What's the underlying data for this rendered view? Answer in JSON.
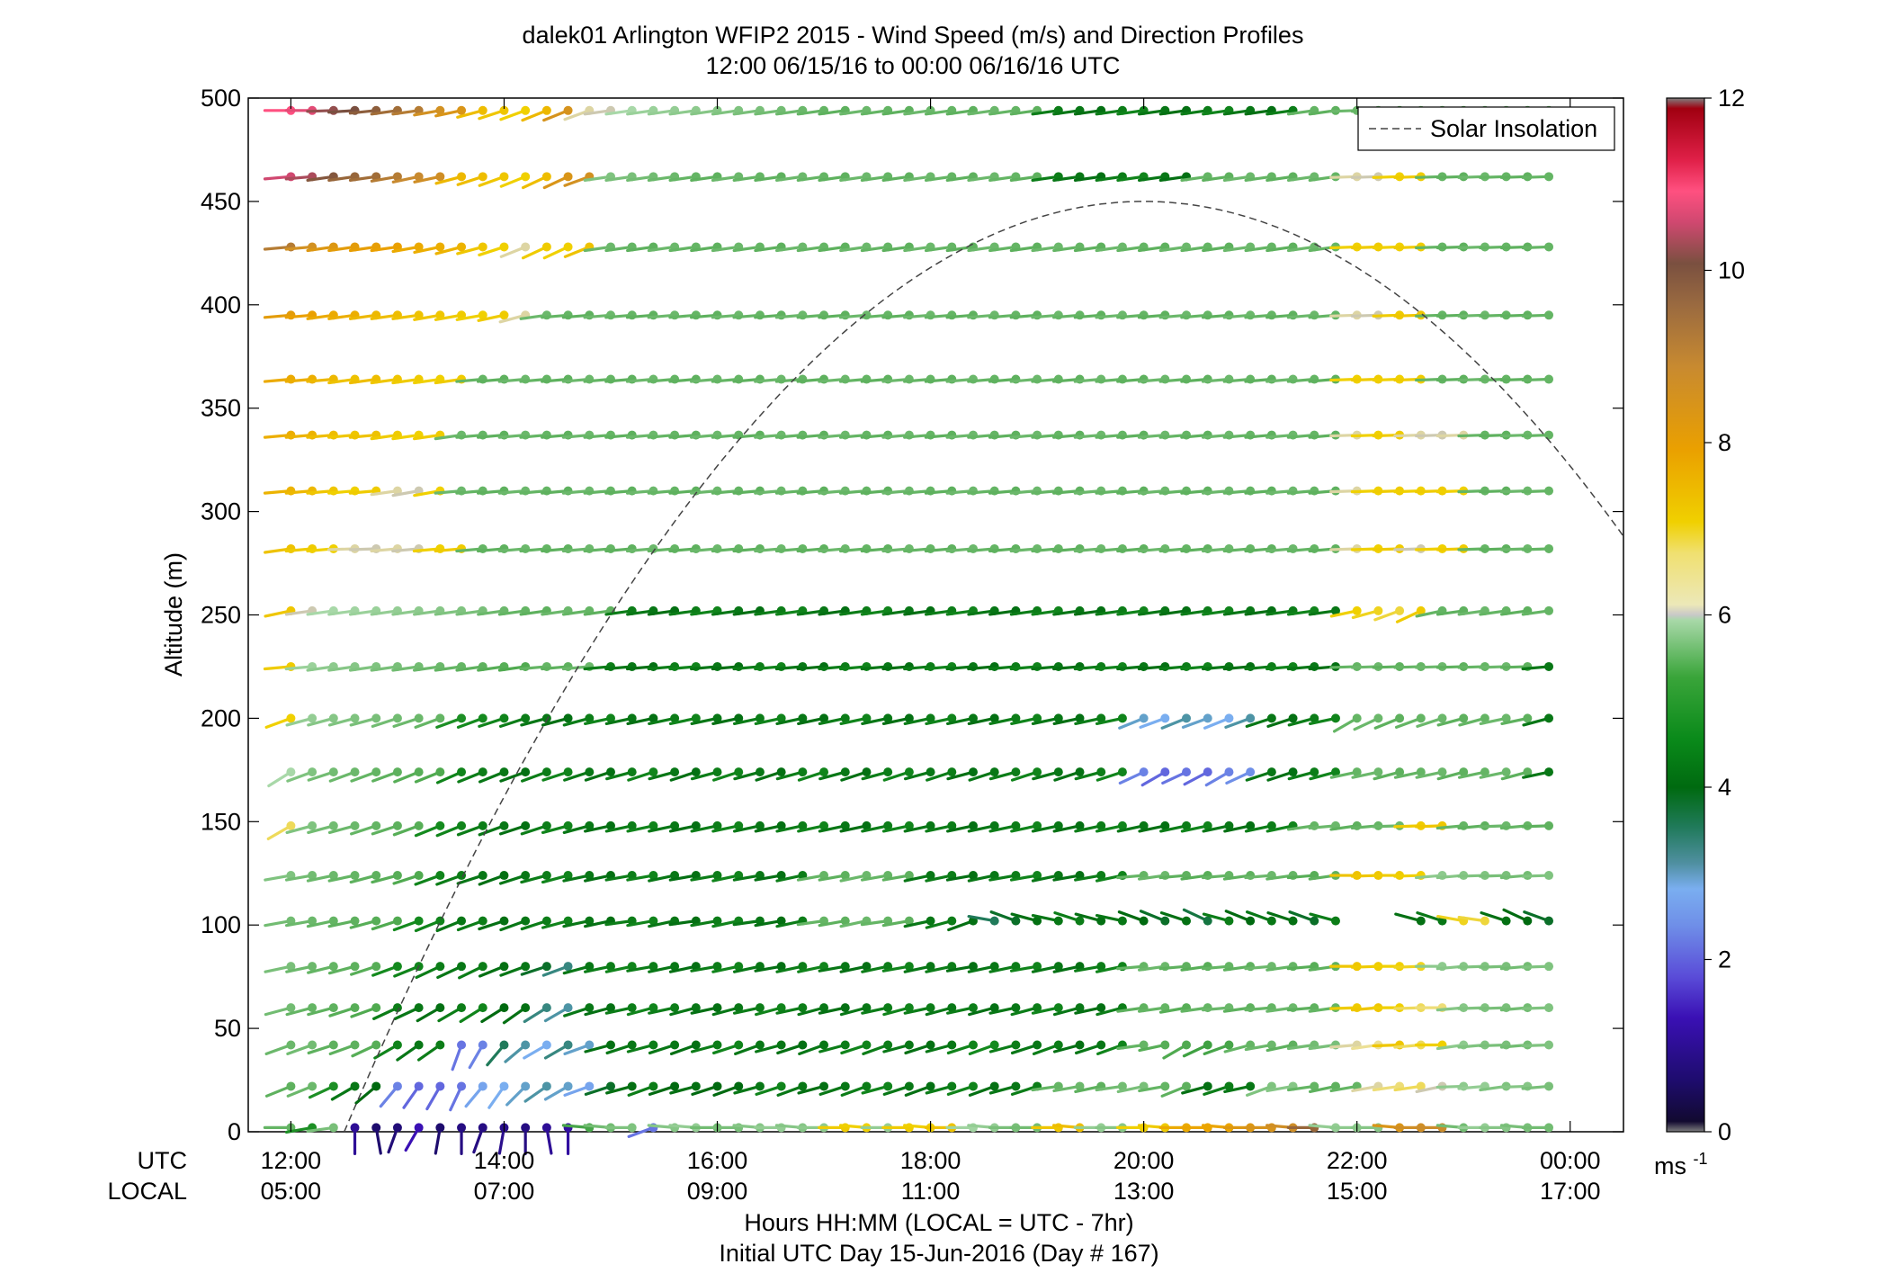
{
  "chart_data": {
    "type": "wind-barb-profile",
    "title_line1": "dalek01 Arlington WFIP2 2015 - Wind Speed (m/s) and Direction Profiles",
    "title_line2": "12:00 06/15/16 to 00:00 06/16/16  UTC",
    "ylabel": "Altitude (m)",
    "ylim": [
      0,
      500
    ],
    "yticks": [
      "0",
      "50",
      "100",
      "150",
      "200",
      "250",
      "300",
      "350",
      "400",
      "450",
      "500"
    ],
    "xlim_hours_utc": [
      11.6,
      24.5
    ],
    "xticks_utc": [
      "12:00",
      "14:00",
      "16:00",
      "18:00",
      "20:00",
      "22:00",
      "00:00"
    ],
    "xticks_local": [
      "05:00",
      "07:00",
      "09:00",
      "11:00",
      "13:00",
      "15:00",
      "17:00"
    ],
    "row_label_utc": "UTC",
    "row_label_local": "LOCAL",
    "xlabel_line1": "Hours HH:MM  (LOCAL = UTC - 7hr)",
    "xlabel_line2": "Initial UTC Day 15-Jun-2016 (Day # 167)",
    "legend": {
      "entries": [
        "Solar Insolation"
      ],
      "placement": "top-right",
      "style": "dashed gray"
    },
    "colorbar": {
      "min": 0,
      "max": 12,
      "ticks": [
        "0",
        "2",
        "4",
        "6",
        "8",
        "10",
        "12"
      ],
      "unit": "ms",
      "unit_exp": "-1"
    },
    "solar_insolation": {
      "start_hour": 12.5,
      "peak_hour": 20.0,
      "peak_altitude": 450,
      "end_hour": 24.5,
      "end_altitude": 250
    },
    "altitudes_m": [
      2,
      22,
      42,
      60,
      80,
      102,
      124,
      148,
      174,
      200,
      225,
      252,
      282,
      310,
      337,
      364,
      395,
      428,
      462,
      494
    ],
    "time_hours_utc": [
      12.0,
      12.2,
      12.4,
      12.6,
      12.8,
      13.0,
      13.2,
      13.4,
      13.6,
      13.8,
      14.0,
      14.2,
      14.4,
      14.6,
      14.8,
      15.0,
      15.2,
      15.4,
      15.6,
      15.8,
      16.0,
      16.2,
      16.4,
      16.6,
      16.8,
      17.0,
      17.2,
      17.4,
      17.6,
      17.8,
      18.0,
      18.2,
      18.4,
      18.6,
      18.8,
      19.0,
      19.2,
      19.4,
      19.6,
      19.8,
      20.0,
      20.2,
      20.4,
      20.6,
      20.8,
      21.0,
      21.2,
      21.4,
      21.6,
      21.8,
      22.0,
      22.2,
      22.4,
      22.6,
      22.8,
      23.0,
      23.2,
      23.4,
      23.6,
      23.8
    ],
    "wind_speed_ms_rows": [
      "4.8 3.9 5.1 1.0 0.6 0.7 1.3 0.6 0.8 0.8 0.9 0.8 1.0 1.1 4.4 5.0 5.2 2.1 5.3 5.5 5.0 5.1 5.3 5.5 5.3 5.4 6.9 6.8 5.5 6.9 6.8 7.1 5.7 5.5 5.1 5.0 7.0 7.2 5.5 5.3 6.8 6.9 7.6 7.7 7.7 8.2 8.4 8.6 9.3 5.5 5.4 5.3 8.3 8.6 8.7 5.0 5.5 5.3 5.1 5.0",
      "4.7 4.9 3.9 3.5 3.3 2.2 2.0 2.0 2.1 2.5 2.6 2.7 2.8 2.7 2.5 3.2 3.4 3.6 3.3 3.4 3.3 3.3 3.5 3.7 3.5 3.4 3.5 3.6 3.7 3.5 3.4 3.6 3.7 3.4 3.5 3.6 4.8 4.9 4.7 5.0 5.1 4.8 4.7 3.4 3.6 3.5 5.2 5.3 4.8 4.7 4.8 6.2 6.4 6.5 6.1 5.4 5.5 5.2 5.3 5.1",
      "4.9 5.0 4.7 4.7 4.6 3.7 3.5 3.6 2.1 2.2 3.0 2.8 2.6 2.9 2.7 3.4 3.5 3.6 3.5 3.4 3.6 3.7 3.5 3.5 3.4 3.5 3.6 3.7 3.6 3.5 3.4 3.5 3.7 3.8 3.6 3.5 3.6 3.4 3.5 3.7 4.8 4.6 4.5 4.3 4.4 4.8 4.9 4.7 5.0 5.1 6.2 6.3 7.0 6.5 6.8 5.4 5.2 5.1 5.0 5.2",
      "5.0 4.8 4.7 4.6 4.5 3.6 3.5 3.4 3.6 3.7 3.3 3.4 2.9 2.8 3.5 3.4 3.6 3.7 3.6 3.5 3.4 3.5 3.6 3.7 3.6 3.5 3.4 3.5 3.6 3.7 3.6 3.5 3.6 3.4 3.5 3.6 3.7 3.5 3.4 3.6 4.7 4.8 4.6 4.8 4.9 4.7 4.8 4.9 4.7 4.8 6.9 7.0 6.8 6.5 6.4 5.3 5.2 5.1 5.0 5.2",
      "5.1 4.9 4.8 4.7 4.6 3.8 3.7 3.6 3.5 3.6 3.4 3.5 3.2 2.9 3.5 3.6 3.7 3.6 3.5 3.4 3.6 3.7 3.5 3.4 3.6 3.7 3.5 3.4 3.6 3.7 3.5 3.6 3.4 3.5 3.6 3.7 3.5 3.4 3.6 3.7 4.8 4.9 4.7 4.6 4.8 4.7 4.9 4.8 4.6 4.7 7.0 6.9 6.8 6.7 5.4 5.3 5.2 5.1 5.0 5.2",
      "5.0 4.9 4.8 4.7 4.6 4.5 3.8 3.7 3.5 3.6 3.4 3.5 3.6 3.7 3.5 3.4 3.6 3.7 3.5 3.4 3.6 3.7 3.5 3.4 3.6 4.8 4.7 4.9 4.8 4.7 3.5 3.6 3.4 3.0 3.2 3.4 3.5 3.6 3.4 3.5 3.3 3.2 3.4 3.1 3.6 3.3 3.5 3.4 3.2 3.6 0 0 0 3.4 3.5 6.7 6.6 3.4 3.3 3.2",
      "5.2 5.0 4.9 4.8 4.7 4.6 4.5 3.7 3.6 3.5 3.4 3.5 3.6 3.7 3.5 3.4 3.6 3.7 3.5 3.4 3.6 3.7 3.5 3.4 3.6 4.8 4.7 4.9 4.8 4.7 3.5 3.6 3.4 3.5 3.6 3.7 3.5 3.4 3.6 3.7 4.8 4.9 4.7 4.6 4.8 4.7 4.9 4.8 4.6 4.7 7.1 7.0 6.9 6.8 5.4 5.3 5.2 5.1 5.0 5.2",
      "6.5 5.2 5.0 4.9 4.8 4.7 4.6 3.8 3.7 3.6 3.5 3.4 3.6 3.7 3.5 3.4 3.6 3.7 3.5 3.4 3.6 3.7 3.5 3.4 3.6 3.7 3.5 3.4 3.6 3.7 3.5 3.6 3.4 3.5 3.6 3.7 3.5 3.4 3.6 3.7 3.5 3.4 3.6 3.7 3.5 3.4 3.6 3.7 4.8 4.9 4.7 4.8 4.9 6.9 7.0 4.8 4.7 4.9 4.8 4.7",
      "5.8 5.2 5.0 4.9 4.8 4.7 4.6 4.5 3.7 3.6 3.5 3.4 3.6 3.7 3.5 3.4 3.6 3.7 3.5 3.4 3.6 3.7 3.5 3.4 3.6 3.7 3.5 3.4 3.6 3.7 3.5 3.6 3.4 3.5 3.6 3.7 3.5 3.4 3.6 3.7 2.2 2.0 2.1 2.0 2.2 2.3 3.5 3.4 3.6 3.7 4.8 4.9 4.7 4.8 4.9 4.7 4.8 4.9 4.7 3.5",
      "6.8 5.5 5.3 5.2 5.1 5.0 4.9 4.8 3.9 3.8 3.7 3.6 3.5 3.4 3.6 3.7 3.5 3.4 3.6 3.7 3.5 3.4 3.6 3.7 3.5 3.4 3.6 3.7 3.5 3.4 3.6 3.7 3.5 3.4 3.6 3.7 3.5 3.4 3.6 3.7 2.7 2.6 2.8 2.7 2.6 2.8 3.5 3.4 3.6 3.7 4.8 4.9 4.7 4.8 4.9 4.7 4.8 4.9 4.7 3.5",
      "6.9 5.6 5.4 5.3 5.2 5.1 5.0 4.9 4.8 4.7 4.6 4.5 4.8 4.7 4.9 3.6 3.5 3.4 3.6 3.7 3.5 3.4 3.6 3.7 3.5 3.4 3.6 3.7 3.5 3.4 3.6 3.7 3.5 3.4 3.6 3.7 3.5 3.4 3.6 3.7 3.5 3.4 3.6 3.7 3.5 3.4 3.6 3.7 3.5 3.4 4.8 4.9 4.7 4.8 4.9 4.7 4.8 4.9 4.7 3.5",
      "7.0 6.1 5.8 5.7 5.6 5.5 5.4 5.3 5.2 5.1 4.9 4.8 4.7 4.9 4.8 4.7 3.6 3.5 3.4 3.6 3.7 3.5 3.4 3.6 3.7 3.5 3.4 3.6 3.7 3.5 3.4 3.6 3.7 3.5 3.4 3.6 3.7 3.5 3.4 3.6 3.7 3.5 3.4 3.6 3.7 3.5 3.4 3.6 3.7 3.5 6.8 6.7 6.6 6.9 4.8 4.7 4.9 4.8 4.7 4.8",
      "7.1 6.9 6.8 6.2 6.1 6.2 6.1 6.8 6.9 4.8 4.7 4.9 4.8 4.7 4.9 4.8 4.7 4.9 4.8 4.7 4.9 4.8 4.7 4.9 4.8 4.7 4.9 4.8 4.7 4.9 4.8 4.7 4.9 4.8 4.7 4.9 4.8 4.7 4.9 4.8 4.7 4.9 4.8 4.7 4.9 4.8 4.7 4.9 4.8 4.7 6.2 6.8 6.9 6.1 6.8 6.9 4.8 4.7 4.9 4.8",
      "7.4 7.3 7.0 6.8 6.9 6.2 6.1 6.8 4.9 4.8 4.7 4.9 4.8 4.7 4.9 4.8 4.7 4.9 4.8 4.7 4.9 4.8 4.7 4.9 4.8 4.7 4.9 4.8 4.7 4.9 4.8 4.7 4.9 4.8 4.7 4.9 4.8 4.7 4.9 4.8 4.7 4.9 4.8 4.7 4.9 4.8 4.7 4.9 4.8 4.7 6.2 6.8 6.9 6.8 6.9 6.8 4.8 4.7 4.9 4.8",
      "7.5 7.4 7.2 7.0 7.1 6.9 6.8 6.9 4.9 4.8 4.7 4.9 4.8 4.7 4.9 4.8 4.7 4.9 4.8 4.7 4.9 4.8 4.7 4.9 4.8 4.7 4.9 4.8 4.7 4.9 4.8 4.7 4.9 4.8 4.7 4.9 4.8 4.7 4.9 4.8 4.7 4.9 4.8 4.7 4.9 4.8 4.7 4.9 4.8 4.7 6.2 6.8 6.9 6.2 6.1 6.2 4.8 4.7 4.9 4.8",
      "7.6 7.5 7.3 7.1 7.2 7.0 6.9 6.8 6.9 4.8 4.7 4.9 4.8 4.7 4.9 4.8 4.7 4.9 4.8 4.7 4.9 4.8 4.7 4.9 4.8 4.7 4.9 4.8 4.7 4.9 4.8 4.7 4.9 4.8 4.7 4.9 4.8 4.7 4.9 4.8 4.7 4.9 4.8 4.7 4.9 4.8 4.7 4.9 4.8 4.7 6.8 6.9 6.8 6.9 4.8 4.7 4.9 4.8 4.7 4.8",
      "8.0 7.8 7.6 7.5 7.3 7.2 7.1 7.0 6.9 6.8 6.9 6.2 4.9 4.8 4.7 4.9 4.8 4.7 4.9 4.8 4.7 4.9 4.8 4.7 4.9 4.8 4.7 4.9 4.8 4.7 4.9 4.8 4.7 4.9 4.8 4.7 4.9 4.8 4.7 4.9 4.8 4.7 4.9 4.8 4.7 4.9 4.8 4.7 4.9 4.8 6.2 6.1 6.9 7.0 4.8 4.7 4.9 4.8 4.7 4.8",
      "9.0 8.5 8.2 8.0 7.9 7.8 7.6 7.5 7.4 7.0 6.8 6.2 6.9 6.8 7.1 4.9 4.8 4.7 4.9 4.8 4.7 4.9 4.8 4.7 4.9 4.8 4.7 4.9 4.8 4.7 4.9 4.8 4.7 4.9 4.8 4.7 4.9 4.8 4.7 4.9 4.8 4.7 4.9 4.8 4.7 4.9 4.8 4.7 4.9 4.8 6.8 6.9 6.8 6.9 4.8 4.7 4.9 4.8 4.7 4.8",
      "10.3 10.0 9.5 9.3 9.2 9.0 8.8 8.6 7.3 7.2 7.0 6.8 7.2 8.3 8.5 5.2 5.1 5.0 4.9 4.8 4.7 4.9 4.8 4.7 4.9 4.8 4.7 4.9 4.8 4.7 4.9 4.8 4.7 4.9 4.8 4.7 3.6 3.5 3.4 3.6 3.7 3.5 3.4 4.8 4.7 4.9 4.8 4.7 4.9 4.8 6.2 6.1 6.8 6.9 4.8 4.7 4.9 4.8 4.7 4.8",
      "10.8 10.5 9.8 9.6 9.4 9.2 9.0 8.5 8.3 7.2 7.0 6.8 7.3 8.4 6.2 6.1 5.8 5.6 5.5 5.4 5.3 5.2 5.1 5.0 4.9 4.8 4.7 4.9 4.8 4.7 4.9 4.8 4.7 4.9 4.8 4.7 3.6 3.5 3.4 3.6 3.7 3.5 3.4 3.6 3.7 3.5 3.4 3.6 4.8 4.7 4.9 4.8 4.7 4.9 4.8 4.7 4.9 4.8 4.7 4.8"
    ],
    "wind_dir_deg_rows": [
      "270 260 262 180 170 200 210 190 180 200 190 180 170 180 275 275 270 250 275 275 270 270 275 270 275 270 270 275 270 270 275 270 270 275 270 270 270 275 270 270 270 275 270 270 275 270 270 275 270 275 270 270 275 270 270 275 270 270 275 270",
      "248 248 245 240 230 220 215 210 205 220 215 225 235 240 250 252 255 250 252 255 252 250 255 252 250 255 252 250 255 252 250 255 252 250 255 252 262 260 258 262 258 260 248 255 252 258 250 260 262 258 260 260 262 262 258 268 265 262 268 265",
      "250 250 252 250 245 240 235 235 200 210 220 230 240 240 250 255 252 255 252 250 255 252 250 255 252 250 255 252 250 255 252 255 252 250 255 252 250 255 252 250 262 258 240 245 250 255 260 258 262 262 265 262 268 265 270 262 265 268 265 268",
      "255 255 255 252 250 245 245 240 240 238 238 235 238 240 252 255 258 255 258 255 258 255 258 255 258 255 258 255 258 255 258 255 258 255 258 255 258 255 258 255 262 262 260 262 265 262 265 262 265 262 268 265 270 268 270 265 268 268 265 268",
      "258 258 256 255 252 250 248 245 245 244 248 250 252 250 255 258 258 260 258 258 260 258 258 260 258 258 260 258 258 260 258 258 260 258 258 260 258 258 260 258 265 262 265 262 265 262 265 262 265 262 270 268 270 268 270 265 268 268 265 268",
      "260 260 258 258 255 252 250 248 248 250 252 250 252 255 258 258 262 260 258 262 260 258 262 260 258 262 260 258 262 260 258 255 250 280 290 285 282 288 285 282 290 292 288 295 285 292 290 288 290 285 0 0 0 285 288 280 278 288 295 290",
      "260 260 258 258 255 255 252 250 250 252 250 252 255 255 258 258 260 260 258 260 260 258 260 260 258 260 260 258 260 260 258 258 260 258 260 260 258 260 260 258 265 262 265 262 265 262 265 262 265 262 270 268 270 268 265 265 268 268 265 268",
      "240 255 255 255 252 252 250 248 248 250 250 252 252 255 255 258 258 258 258 258 258 258 258 258 258 258 258 258 258 258 258 258 258 258 258 258 258 258 258 258 258 258 258 258 258 258 258 258 262 265 262 265 268 268 268 265 265 268 265 268",
      "238 250 252 250 250 250 248 248 246 248 248 250 250 252 252 252 255 252 255 252 255 252 255 252 255 252 255 252 255 252 255 252 255 252 255 252 255 252 255 252 245 240 245 242 240 245 252 252 255 255 258 258 255 258 258 255 258 258 255 258",
      "250 255 255 255 255 252 252 250 250 250 252 252 255 255 255 258 258 258 258 258 258 258 258 258 258 258 258 258 258 258 258 258 258 258 258 258 258 258 258 258 248 250 248 250 248 250 252 252 255 258 240 245 248 250 252 255 255 258 258 255",
      "265 265 262 262 262 262 262 262 262 262 262 262 265 265 265 265 265 265 265 265 265 265 265 265 265 265 265 265 265 265 265 265 265 265 265 265 265 265 265 265 265 265 265 265 265 265 265 265 265 265 268 268 268 268 268 268 268 268 268 265",
      "258 262 262 262 262 262 262 262 262 262 262 262 262 262 262 262 262 262 262 262 262 262 262 262 262 262 262 262 262 262 262 262 262 262 262 262 262 262 262 262 262 262 262 262 262 262 262 262 262 262 258 255 250 245 258 262 262 262 262 262",
      "262 265 265 268 268 265 265 265 265 265 265 265 265 265 265 265 265 265 265 265 265 265 265 265 265 265 265 265 265 265 265 265 265 265 265 265 265 265 265 265 265 265 265 265 265 265 265 265 265 265 268 268 268 268 268 268 268 268 268 268",
      "265 265 265 265 265 262 260 260 265 265 265 265 265 265 265 265 265 265 265 265 265 265 265 265 265 265 265 265 265 265 265 265 265 265 265 265 265 265 265 265 265 265 265 265 265 265 265 265 265 265 268 268 268 268 268 268 268 268 268 268",
      "265 265 265 265 265 262 262 262 262 265 265 265 265 265 265 265 265 265 265 265 265 265 265 265 265 265 265 265 265 265 265 265 265 265 265 265 265 265 265 265 265 265 265 265 265 265 265 265 265 265 268 268 268 268 268 268 268 268 268 268",
      "265 265 265 262 262 262 262 262 262 265 265 265 265 265 265 265 265 265 265 265 265 265 265 265 265 265 265 265 265 265 265 265 265 265 265 265 265 265 265 265 265 265 265 265 265 265 265 265 265 265 268 268 268 268 268 268 268 268 268 268",
      "265 265 262 262 262 262 262 260 260 260 258 255 262 265 265 265 265 265 265 265 265 265 265 265 265 265 265 265 265 265 265 265 265 265 265 265 265 265 265 265 265 265 265 265 265 265 265 265 265 265 268 268 268 268 268 268 268 268 268 268",
      "265 265 262 262 262 262 260 258 255 255 252 248 245 245 248 262 262 262 262 262 262 262 262 262 262 262 262 262 262 262 262 262 262 262 262 262 262 262 262 262 262 262 262 262 262 262 262 262 262 262 268 268 268 268 268 268 268 268 268 268",
      "265 265 262 262 262 260 258 258 255 252 250 248 245 245 250 262 262 262 262 262 262 262 262 262 262 262 262 262 262 262 262 262 262 262 262 262 262 262 262 262 262 262 262 262 262 262 262 262 262 262 268 268 268 268 268 268 268 268 268 268",
      "270 270 268 266 264 262 262 260 258 255 252 250 248 248 250 262 262 262 262 262 262 262 262 262 262 262 262 262 262 262 262 262 262 262 262 262 262 262 262 262 262 262 262 262 262 262 262 262 262 262 268 268 268 268 268 268 268 268 268 268"
    ]
  }
}
